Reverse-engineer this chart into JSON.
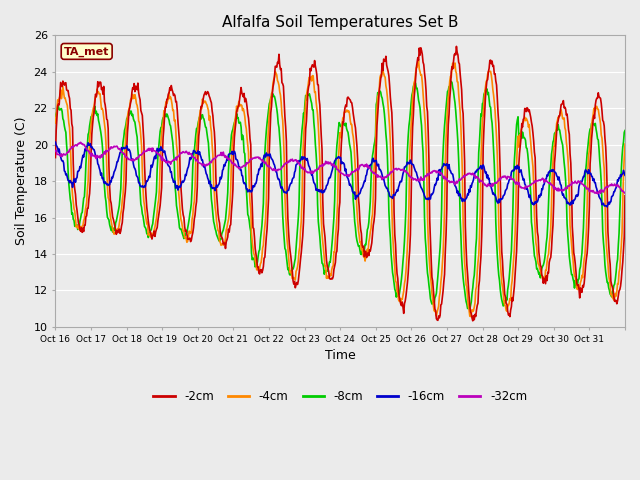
{
  "title": "Alfalfa Soil Temperatures Set B",
  "xlabel": "Time",
  "ylabel": "Soil Temperature (C)",
  "ylim": [
    10,
    26
  ],
  "ytick_values": [
    10,
    12,
    14,
    16,
    18,
    20,
    22,
    24,
    26
  ],
  "xtick_labels": [
    "Oct 16",
    "Oct 17",
    "Oct 18",
    "Oct 19",
    "Oct 20",
    "Oct 21",
    "Oct 22",
    "Oct 23",
    "Oct 24",
    "Oct 25",
    "Oct 26",
    "Oct 27",
    "Oct 28",
    "Oct 29",
    "Oct 30",
    "Oct 31"
  ],
  "legend_labels": [
    "-2cm",
    "-4cm",
    "-8cm",
    "-16cm",
    "-32cm"
  ],
  "legend_colors": [
    "#cc0000",
    "#ff8800",
    "#00cc00",
    "#0000cc",
    "#bb00bb"
  ],
  "annotation_text": "TA_met",
  "annotation_bg": "#ffffcc",
  "annotation_border": "#8b0000",
  "title_fontsize": 11,
  "bg_color": "#ebebeb",
  "grid_color": "#ffffff"
}
